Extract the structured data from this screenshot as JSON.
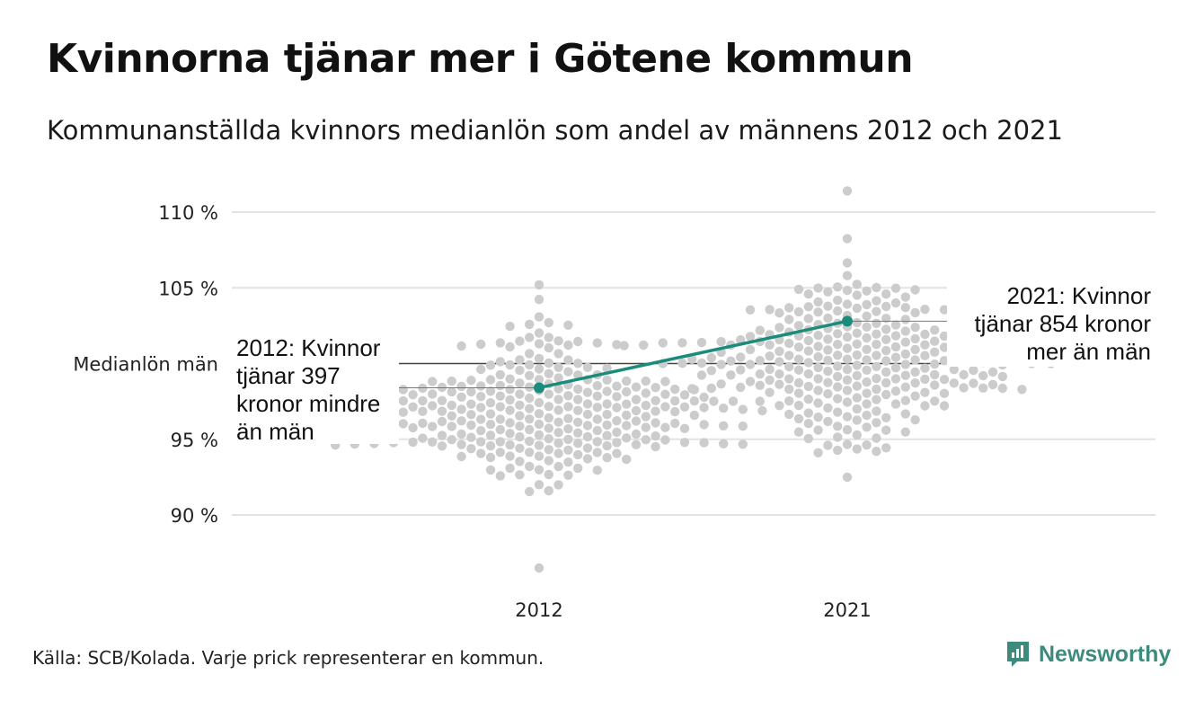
{
  "title": "Kvinnorna tjänar mer i Götene kommun",
  "subtitle": "Kommunanställda kvinnors medianlön som andel av männens 2012 och 2021",
  "source": "Källa: SCB/Kolada. Varje prick representerar en kommun.",
  "brand": "Newsworthy",
  "colors": {
    "dots": "#cccccc",
    "highlight": "#1b8b7b",
    "grid": "#e3e3e3",
    "reference": "#444444",
    "brand": "#3d8b7d"
  },
  "chart_data": {
    "type": "scatter",
    "title": "Kvinnorna tjänar mer i Götene kommun",
    "subtitle": "Kommunanställda kvinnors medianlön som andel av männens 2012 och 2021",
    "categories": [
      "2012",
      "2021"
    ],
    "y_ticks": [
      {
        "value": 90,
        "label": "90 %"
      },
      {
        "value": 95,
        "label": "95 %"
      },
      {
        "value": 105,
        "label": "105 %"
      },
      {
        "value": 110,
        "label": "110 %"
      }
    ],
    "reference_line": {
      "value": 100,
      "label": "Medianlön män"
    },
    "ylim": [
      86,
      112
    ],
    "grid": true,
    "distributions": [
      {
        "category": "2012",
        "median": 96.8,
        "min": 86.5,
        "max": 105.2,
        "count": 290
      },
      {
        "category": "2021",
        "median": 100.4,
        "min": 92.5,
        "max": 111.4,
        "count": 290
      }
    ],
    "highlight": {
      "name": "Götene",
      "points": [
        {
          "x": "2012",
          "y": 98.4
        },
        {
          "x": "2021",
          "y": 102.8
        }
      ]
    },
    "annotations": [
      {
        "category": "2012",
        "lines": [
          "2012: Kvinnor",
          "tjänar 397",
          "kronor mindre",
          "än män"
        ]
      },
      {
        "category": "2021",
        "lines": [
          "2021: Kvinnor",
          "tjänar 854 kronor",
          "mer än män"
        ]
      }
    ]
  }
}
